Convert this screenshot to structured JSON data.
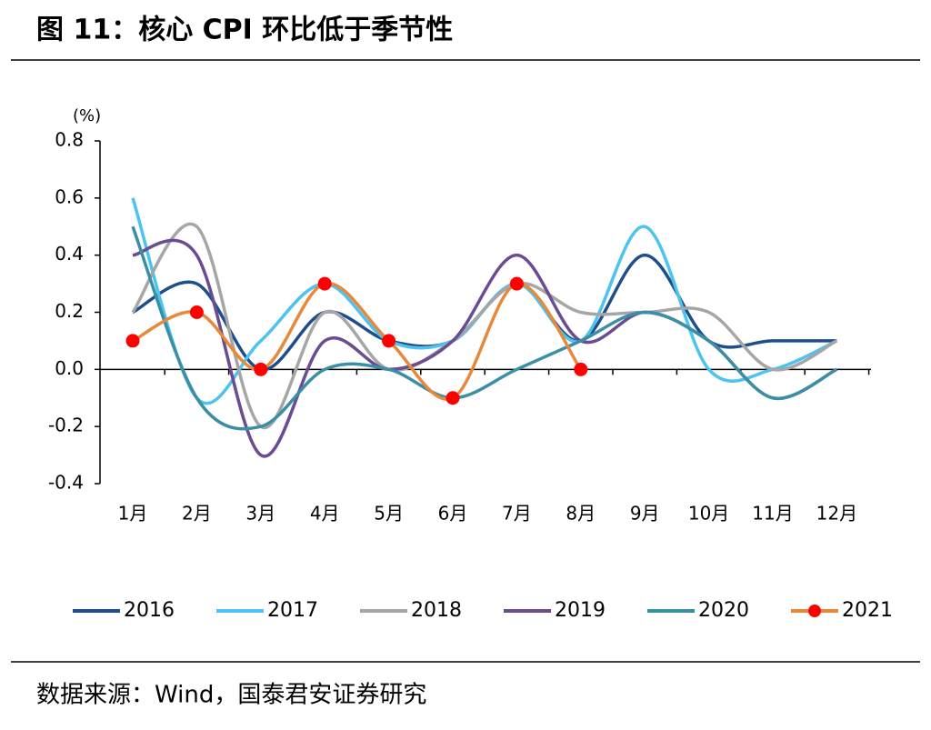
{
  "chart_data": {
    "type": "line",
    "title": "图 11：核心 CPI 环比低于季节性",
    "y_axis_label": "(%)",
    "source": "数据来源：Wind，国泰君安证券研究",
    "categories": [
      "1月",
      "2月",
      "3月",
      "4月",
      "5月",
      "6月",
      "7月",
      "8月",
      "9月",
      "10月",
      "11月",
      "12月"
    ],
    "series": [
      {
        "name": "2016",
        "color": "#1f4e8c",
        "values": [
          0.2,
          0.3,
          0.0,
          0.2,
          0.1,
          0.1,
          0.3,
          0.1,
          0.4,
          0.1,
          0.1,
          0.1
        ]
      },
      {
        "name": "2017",
        "color": "#4dc3f0",
        "values": [
          0.6,
          -0.1,
          0.1,
          0.3,
          0.1,
          0.1,
          0.3,
          0.1,
          0.5,
          0.0,
          0.0,
          0.1
        ]
      },
      {
        "name": "2018",
        "color": "#a6a6a6",
        "values": [
          0.2,
          0.5,
          -0.2,
          0.2,
          0.0,
          0.1,
          0.3,
          0.2,
          0.2,
          0.2,
          0.0,
          0.1
        ]
      },
      {
        "name": "2019",
        "color": "#6a4c93",
        "values": [
          0.4,
          0.4,
          -0.3,
          0.1,
          0.0,
          0.1,
          0.4,
          0.1,
          0.2,
          0.1,
          -0.1,
          0.0
        ]
      },
      {
        "name": "2020",
        "color": "#3a8fa6",
        "values": [
          0.5,
          -0.1,
          -0.2,
          0.0,
          0.0,
          -0.1,
          0.0,
          0.1,
          0.2,
          0.1,
          -0.1,
          0.0
        ]
      },
      {
        "name": "2021",
        "color": "#e8883a",
        "marker_color": "#ff0000",
        "values": [
          0.1,
          0.2,
          0.0,
          0.3,
          0.1,
          -0.1,
          0.3,
          0.0,
          null,
          null,
          null,
          null
        ]
      }
    ],
    "ylim": [
      -0.4,
      0.8
    ],
    "yticks": [
      -0.4,
      -0.2,
      {
        "value": 0,
        "label": "0.0"
      },
      0.2,
      0.4,
      0.6,
      0.8
    ],
    "smooth": true,
    "legend": "bottom"
  }
}
